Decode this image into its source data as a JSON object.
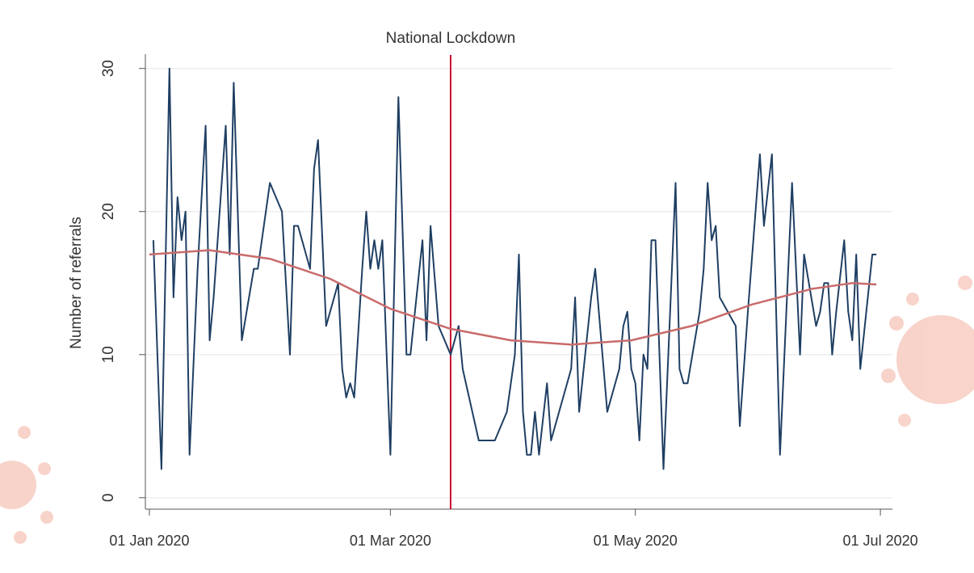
{
  "chart_data": {
    "type": "line",
    "y_label": "Number of referrals",
    "xlim": [
      "2019-12-31",
      "2020-07-04"
    ],
    "xticks": [
      {
        "value": "2020-01-01",
        "label": "01 Jan 2020"
      },
      {
        "value": "2020-03-01",
        "label": "01 Mar 2020"
      },
      {
        "value": "2020-05-01",
        "label": "01 May 2020"
      },
      {
        "value": "2020-07-01",
        "label": "01 Jul 2020"
      }
    ],
    "ylim": [
      -0.8,
      31
    ],
    "yticks": [
      0,
      10,
      20,
      30
    ],
    "grid": true,
    "annotations": [
      {
        "text": "National Lockdown",
        "x": "2020-03-16",
        "color": "#c8102e"
      }
    ],
    "series": [
      {
        "color": "#1f3f63",
        "x": [
          "2020-01-02",
          "2020-01-04",
          "2020-01-06",
          "2020-01-07",
          "2020-01-08",
          "2020-01-09",
          "2020-01-10",
          "2020-01-11",
          "2020-01-13",
          "2020-01-15",
          "2020-01-16",
          "2020-01-17",
          "2020-01-20",
          "2020-01-21",
          "2020-01-22",
          "2020-01-24",
          "2020-01-27",
          "2020-01-28",
          "2020-01-31",
          "2020-02-03",
          "2020-02-05",
          "2020-02-06",
          "2020-02-07",
          "2020-02-10",
          "2020-02-11",
          "2020-02-12",
          "2020-02-14",
          "2020-02-17",
          "2020-02-18",
          "2020-02-19",
          "2020-02-20",
          "2020-02-21",
          "2020-02-23",
          "2020-02-24",
          "2020-02-25",
          "2020-02-26",
          "2020-02-27",
          "2020-02-28",
          "2020-03-01",
          "2020-03-03",
          "2020-03-05",
          "2020-03-06",
          "2020-03-09",
          "2020-03-10",
          "2020-03-11",
          "2020-03-13",
          "2020-03-16",
          "2020-03-18",
          "2020-03-19",
          "2020-03-23",
          "2020-03-27",
          "2020-03-30",
          "2020-04-01",
          "2020-04-02",
          "2020-04-03",
          "2020-04-04",
          "2020-04-05",
          "2020-04-06",
          "2020-04-07",
          "2020-04-09",
          "2020-04-10",
          "2020-04-15",
          "2020-04-16",
          "2020-04-17",
          "2020-04-20",
          "2020-04-21",
          "2020-04-24",
          "2020-04-27",
          "2020-04-28",
          "2020-04-29",
          "2020-04-30",
          "2020-05-01",
          "2020-05-02",
          "2020-05-03",
          "2020-05-04",
          "2020-05-05",
          "2020-05-06",
          "2020-05-08",
          "2020-05-11",
          "2020-05-12",
          "2020-05-13",
          "2020-05-14",
          "2020-05-17",
          "2020-05-18",
          "2020-05-19",
          "2020-05-20",
          "2020-05-21",
          "2020-05-22",
          "2020-05-26",
          "2020-05-27",
          "2020-05-29",
          "2020-06-01",
          "2020-06-02",
          "2020-06-04",
          "2020-06-06",
          "2020-06-09",
          "2020-06-11",
          "2020-06-12",
          "2020-06-15",
          "2020-06-16",
          "2020-06-17",
          "2020-06-18",
          "2020-06-19",
          "2020-06-20",
          "2020-06-22",
          "2020-06-23",
          "2020-06-24",
          "2020-06-25",
          "2020-06-26",
          "2020-06-29",
          "2020-06-30"
        ],
        "values": [
          18,
          2,
          30,
          14,
          21,
          18,
          20,
          3,
          16,
          26,
          11,
          14,
          26,
          17,
          29,
          11,
          16,
          16,
          22,
          20,
          10,
          19,
          19,
          16,
          23,
          25,
          12,
          15,
          9,
          7,
          8,
          7,
          16,
          20,
          16,
          18,
          16,
          18,
          3,
          28,
          10,
          10,
          18,
          11,
          19,
          12,
          10,
          12,
          9,
          4,
          4,
          6,
          10,
          17,
          6,
          3,
          3,
          6,
          3,
          8,
          4,
          9,
          14,
          6,
          14,
          16,
          6,
          9,
          12,
          13,
          9,
          8,
          4,
          10,
          9,
          18,
          18,
          2,
          22,
          9,
          8,
          8,
          13,
          16,
          22,
          18,
          19,
          14,
          12,
          5,
          13,
          24,
          19,
          24,
          3,
          22,
          10,
          17,
          12,
          13,
          15,
          15,
          10,
          13,
          18,
          13,
          11,
          17,
          9,
          17,
          17
        ]
      },
      {
        "color": "#c96b6b",
        "x": [
          "2020-01-01",
          "2020-01-16",
          "2020-01-31",
          "2020-02-15",
          "2020-03-01",
          "2020-03-16",
          "2020-03-31",
          "2020-04-15",
          "2020-04-30",
          "2020-05-15",
          "2020-05-30",
          "2020-06-14",
          "2020-06-24",
          "2020-06-30"
        ],
        "values": [
          17,
          17.3,
          16.7,
          15.3,
          13.2,
          11.8,
          11,
          10.7,
          11,
          12,
          13.5,
          14.6,
          15,
          14.9
        ]
      }
    ]
  }
}
